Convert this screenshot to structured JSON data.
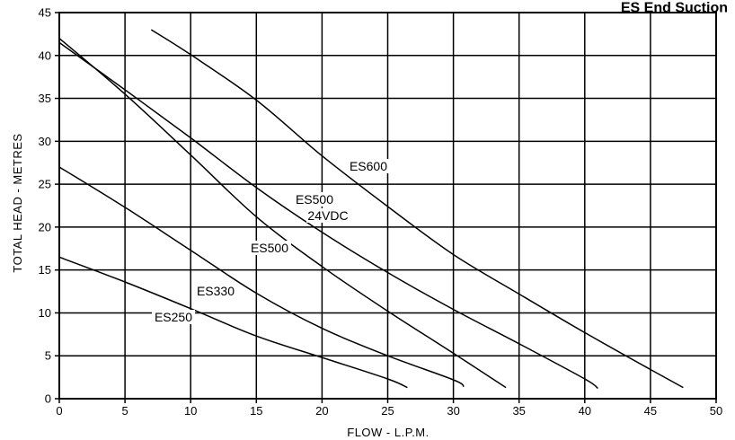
{
  "chart_data": {
    "type": "line",
    "title": "ES End Suction",
    "xlabel": "FLOW - L.P.M.",
    "ylabel": "TOTAL HEAD - METRES",
    "xlim": [
      0,
      50
    ],
    "ylim": [
      0,
      45
    ],
    "xticks": [
      "0",
      "5",
      "10",
      "15",
      "20",
      "25",
      "30",
      "35",
      "40",
      "45",
      "50"
    ],
    "yticks": [
      "0",
      "5",
      "10",
      "15",
      "20",
      "25",
      "30",
      "35",
      "40",
      "45"
    ],
    "grid": true,
    "series": [
      {
        "name": "ES250",
        "x": [
          0,
          5,
          10,
          15,
          20,
          25,
          26.5
        ],
        "y": [
          16.5,
          13.6,
          10.5,
          7.3,
          4.8,
          2.3,
          1.3
        ]
      },
      {
        "name": "ES330",
        "x": [
          0,
          5,
          10,
          15,
          20,
          25,
          30,
          30.8
        ],
        "y": [
          27,
          22.3,
          17.3,
          12.3,
          8.2,
          5,
          2.2,
          1.4
        ]
      },
      {
        "name": "ES500",
        "x": [
          0,
          5,
          10,
          15,
          20,
          25,
          30,
          34
        ],
        "y": [
          42,
          35.5,
          28.4,
          21.2,
          15.4,
          10.2,
          5.3,
          1.3
        ]
      },
      {
        "name": "ES500 24VDC",
        "x": [
          0,
          5,
          10,
          15,
          20,
          25,
          30,
          35,
          40,
          41
        ],
        "y": [
          41.5,
          36,
          30.4,
          24.6,
          19.4,
          14.7,
          10.4,
          6.4,
          2.3,
          1.2
        ]
      },
      {
        "name": "ES600",
        "x": [
          7,
          10,
          15,
          20,
          25,
          30,
          35,
          40,
          45,
          47.5
        ],
        "y": [
          43,
          40.1,
          34.8,
          28.3,
          22.4,
          16.8,
          12.2,
          7.7,
          3.4,
          1.3
        ]
      }
    ],
    "labels": [
      {
        "text": "ES600"
      },
      {
        "text": "ES500"
      },
      {
        "text": "24VDC"
      },
      {
        "text": "ES500"
      },
      {
        "text": "ES330"
      },
      {
        "text": "ES250"
      }
    ]
  }
}
